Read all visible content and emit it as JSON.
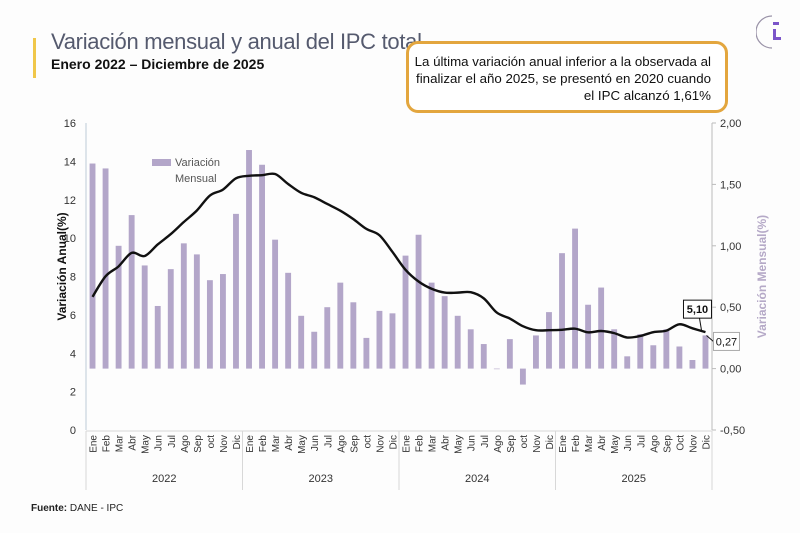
{
  "header": {
    "title": "Variación mensual y anual del IPC total",
    "subtitle": "Enero 2022 – Diciembre de 2025"
  },
  "callout": {
    "text": "La última variación anual inferior  a la observada al finalizar el año 2025, se presentó en 2020 cuando el IPC alcanzó 1,61%"
  },
  "footer": {
    "source_label": "Fuente:",
    "source_value": " DANE - IPC"
  },
  "logo": {
    "icon": "dane-logo-icon"
  },
  "colors": {
    "bar": "#b3a6c9",
    "line": "#111111",
    "callout_border": "#e3a63e",
    "accent": "#f0c74a",
    "right_axis_title": "#b5a9c7"
  },
  "chart_data": {
    "type": "bar+line",
    "title": "Variación mensual y anual del IPC total",
    "subtitle": "Enero 2022 – Diciembre de 2025",
    "ylabel_left": "Variación Anual(%)",
    "ylabel_right": "Variación Mensual(%)",
    "ylim_left": [
      0,
      16
    ],
    "yticks_left": [
      "0",
      "2",
      "4",
      "6",
      "8",
      "10",
      "12",
      "14",
      "16"
    ],
    "ylim_right": [
      -0.5,
      2.0
    ],
    "yticks_right": [
      "-0,50",
      "0,00",
      "0,50",
      "1,00",
      "1,50",
      "2,00"
    ],
    "grid": false,
    "legend": {
      "position": "top-left",
      "entries": [
        "Variación Mensual"
      ]
    },
    "months": [
      "Ene",
      "Feb",
      "Mar",
      "Abr",
      "May",
      "Jun",
      "Jul",
      "Ago",
      "Sep",
      "oct",
      "Nov",
      "Dic",
      "Ene",
      "Feb",
      "Mar",
      "Abr",
      "May",
      "Jun",
      "Jul",
      "Ago",
      "Sep",
      "oct",
      "Nov",
      "Dic",
      "Ene",
      "Feb",
      "Mar",
      "Abr",
      "May",
      "Jun",
      "Jul",
      "Ago",
      "Sep",
      "oct",
      "Nov",
      "Dic",
      "Ene",
      "Feb",
      "Mar",
      "Abr",
      "May",
      "Jun",
      "Jul",
      "Ago",
      "Sep",
      "Oct",
      "Nov",
      "Dic"
    ],
    "years": [
      "2022",
      "2023",
      "2024",
      "2025"
    ],
    "series": [
      {
        "name": "Variación Mensual",
        "type": "bar",
        "axis": "right",
        "values": [
          1.67,
          1.63,
          1.0,
          1.25,
          0.84,
          0.51,
          0.81,
          1.02,
          0.93,
          0.72,
          0.77,
          1.26,
          1.78,
          1.66,
          1.05,
          0.78,
          0.43,
          0.3,
          0.5,
          0.7,
          0.54,
          0.25,
          0.47,
          0.45,
          0.92,
          1.09,
          0.7,
          0.59,
          0.43,
          0.32,
          0.2,
          0.0,
          0.24,
          -0.13,
          0.27,
          0.46,
          0.94,
          1.14,
          0.52,
          0.66,
          0.32,
          0.1,
          0.28,
          0.19,
          0.32,
          0.18,
          0.07,
          0.27
        ]
      },
      {
        "name": "Variación Anual",
        "type": "line",
        "axis": "left",
        "values": [
          6.94,
          8.01,
          8.53,
          9.23,
          9.07,
          9.67,
          10.21,
          10.84,
          11.44,
          12.22,
          12.53,
          13.12,
          13.25,
          13.28,
          13.34,
          12.82,
          12.36,
          12.13,
          11.78,
          11.43,
          10.99,
          10.48,
          10.15,
          9.28,
          8.35,
          7.74,
          7.36,
          7.16,
          7.16,
          7.18,
          6.86,
          6.12,
          5.81,
          5.41,
          5.2,
          5.2,
          5.22,
          5.28,
          5.09,
          5.16,
          5.05,
          4.82,
          4.9,
          5.1,
          5.18,
          5.51,
          5.3,
          5.1
        ]
      }
    ],
    "annotations": [
      {
        "label": "5,10",
        "series": "Variación Anual",
        "month_index": 47
      },
      {
        "label": "0,27",
        "series": "Variación Mensual",
        "month_index": 47
      }
    ]
  }
}
